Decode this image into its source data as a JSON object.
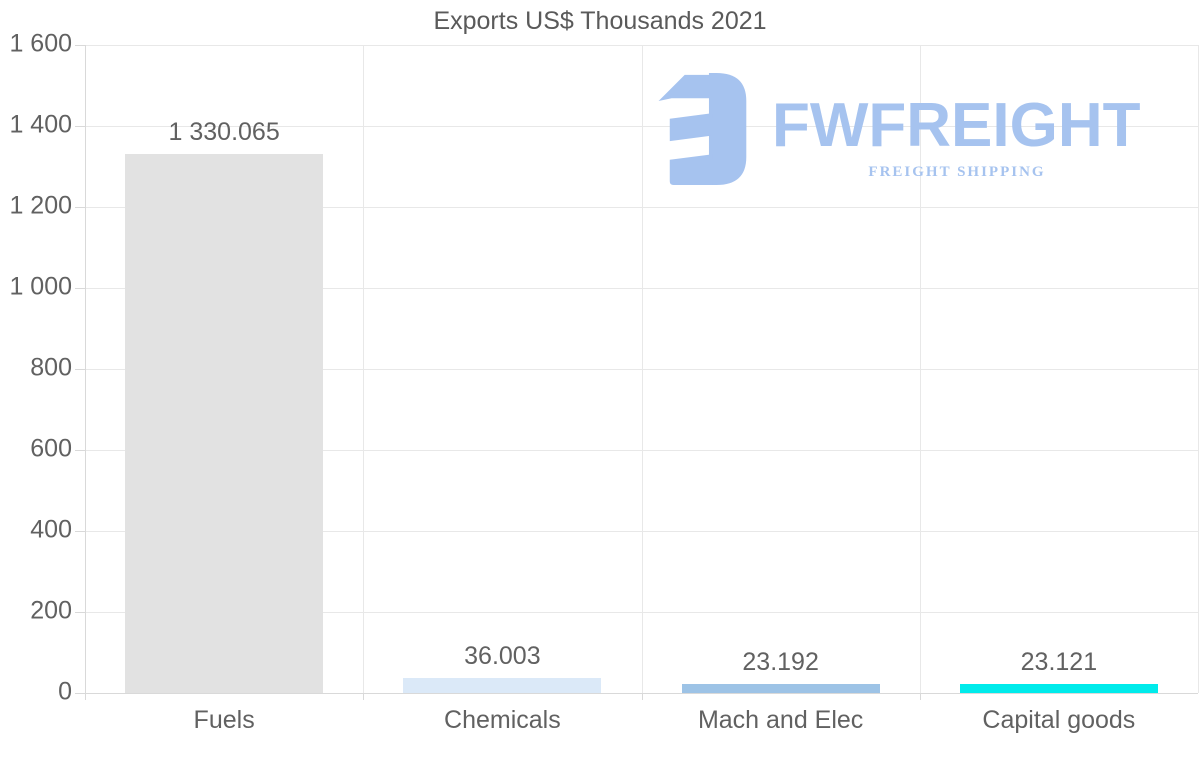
{
  "chart_data": {
    "type": "bar",
    "title": "Exports US$ Thousands 2021",
    "categories": [
      "Fuels",
      "Chemicals",
      "Mach and Elec",
      "Capital goods"
    ],
    "values": [
      1330.065,
      36.003,
      23.192,
      23.121
    ],
    "value_labels": [
      "1 330.065",
      "36.003",
      "23.192",
      "23.121"
    ],
    "bar_colors": [
      "#e2e2e2",
      "#dbe9f8",
      "#9dc3e6",
      "#00ebeb"
    ],
    "xlabel": "",
    "ylabel": "",
    "ylim": [
      0,
      1600
    ],
    "y_tick_step": 200,
    "y_tick_labels": [
      "0",
      "200",
      "400",
      "600",
      "800",
      "1 000",
      "1 200",
      "1 400",
      "1 600"
    ],
    "grid": "on",
    "legend": "none"
  },
  "logo": {
    "brand": "FWFREIGHT",
    "tagline": "FREIGHT SHIPPING",
    "color": "#a6c3ef",
    "icon": "fwfreight-f-mark"
  },
  "colors": {
    "background": "#ffffff",
    "text": "#616161",
    "title_text": "#5a5a5a",
    "grid": "#e8e8e8",
    "axis": "#d9d9d9"
  }
}
